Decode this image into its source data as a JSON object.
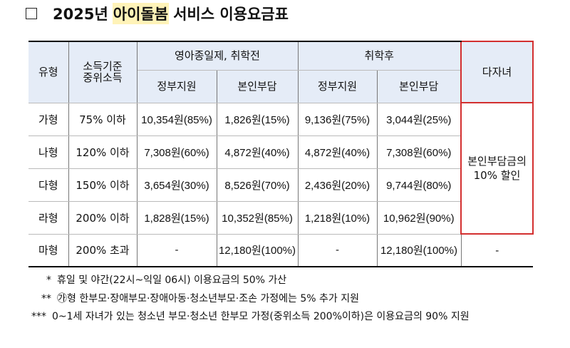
{
  "title": {
    "year": "2025년",
    "highlight": "아이돌봄",
    "rest": "서비스 이용요금표"
  },
  "table": {
    "headers": {
      "type": "유형",
      "income_line1": "소득기준",
      "income_line2": "중위소득",
      "pre_school": "영아종일제, 취학전",
      "post_school": "취학후",
      "multi_child": "다자녀",
      "gov_support": "정부지원",
      "self_pay": "본인부담"
    },
    "rows": [
      {
        "type": "가형",
        "income": "75% 이하",
        "pre_gov": "10,354원(85%)",
        "pre_self": "1,826원(15%)",
        "post_gov": "9,136원(75%)",
        "post_self": "3,044원(25%)"
      },
      {
        "type": "나형",
        "income": "120% 이하",
        "pre_gov": "7,308원(60%)",
        "pre_self": "4,872원(40%)",
        "post_gov": "4,872원(40%)",
        "post_self": "7,308원(60%)"
      },
      {
        "type": "다형",
        "income": "150% 이하",
        "pre_gov": "3,654원(30%)",
        "pre_self": "8,526원(70%)",
        "post_gov": "2,436원(20%)",
        "post_self": "9,744원(80%)"
      },
      {
        "type": "라형",
        "income": "200% 이하",
        "pre_gov": "1,828원(15%)",
        "pre_self": "10,352원(85%)",
        "post_gov": "1,218원(10%)",
        "post_self": "10,962원(90%)"
      },
      {
        "type": "마형",
        "income": "200% 초과",
        "pre_gov": "-",
        "pre_self": "12,180원(100%)",
        "post_gov": "-",
        "post_self": "12,180원(100%)",
        "multi": "-"
      }
    ],
    "multi_discount_line1": "본인부담금의",
    "multi_discount_line2": "10% 할인"
  },
  "notes": [
    {
      "mark": "*",
      "text": "휴일 및 야간(22시~익일 06시) 이용요금의 50% 가산"
    },
    {
      "mark": "**",
      "text": "㉮형 한부모·장애부모·장애아동·청소년부모·조손 가정에는 5% 추가 지원"
    },
    {
      "mark": "***",
      "text": "0~1세 자녀가 있는 청소년 부모·청소년 한부모 가정(중위소득 200%이하)은 이용요금의 90% 지원"
    }
  ],
  "colors": {
    "header_bg": "#e5ecf7",
    "highlight_bg": "#fff3b8",
    "discount_border": "#d32f2f"
  }
}
